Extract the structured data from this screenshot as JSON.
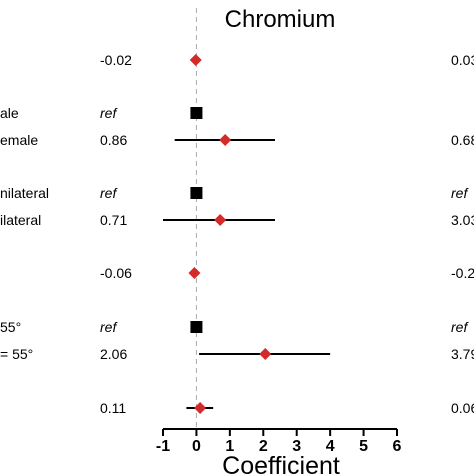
{
  "chart_data": {
    "type": "forest",
    "title": "Chromium",
    "xlabel": "Coefficient",
    "xlim": [
      -1,
      6
    ],
    "x_ticks": [
      "-1",
      "0",
      "1",
      "2",
      "3",
      "4",
      "5",
      "6"
    ],
    "reference_line_x": 0,
    "colors": {
      "estimate": "#d42a2a",
      "reference": "#000000",
      "ci_line": "#000000",
      "zero_line": "#aaaaaa"
    },
    "rows": [
      {
        "left_label": "",
        "value_text": "-0.02",
        "estimate": -0.02,
        "ci": null,
        "is_ref": false,
        "right_text": "0.03"
      },
      {
        "left_label": "ale",
        "value_text": "ref",
        "estimate": 0,
        "ci": null,
        "is_ref": true,
        "right_text": ""
      },
      {
        "left_label": "emale",
        "value_text": "0.86",
        "estimate": 0.86,
        "ci": [
          -0.65,
          2.35
        ],
        "is_ref": false,
        "right_text": "0.68"
      },
      {
        "left_label": "nilateral",
        "value_text": "ref",
        "estimate": 0,
        "ci": null,
        "is_ref": true,
        "right_text": "ref"
      },
      {
        "left_label": "ilateral",
        "value_text": "0.71",
        "estimate": 0.71,
        "ci": [
          -1.0,
          2.35
        ],
        "is_ref": false,
        "right_text": "3.03"
      },
      {
        "left_label": "",
        "value_text": "-0.06",
        "estimate": -0.06,
        "ci": null,
        "is_ref": false,
        "right_text": "-0.2"
      },
      {
        "left_label": "55°",
        "value_text": "ref",
        "estimate": 0,
        "ci": null,
        "is_ref": true,
        "right_text": "ref"
      },
      {
        "left_label": "= 55°",
        "value_text": "2.06",
        "estimate": 2.06,
        "ci": [
          0.08,
          4.0
        ],
        "is_ref": false,
        "right_text": "3.79"
      },
      {
        "left_label": "",
        "value_text": "0.11",
        "estimate": 0.11,
        "ci": [
          -0.3,
          0.5
        ],
        "is_ref": false,
        "right_text": "0.06"
      }
    ]
  }
}
